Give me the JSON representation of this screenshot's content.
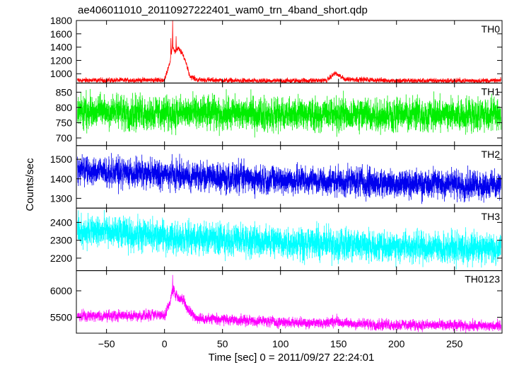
{
  "chart_data": {
    "type": "line",
    "title": "ae406011010_20110927222401_wam0_trn_4band_short.qdp",
    "xlabel": "Time [sec] 0 = 2011/09/27 22:24:01",
    "ylabel": "Counts/sec",
    "xlim": [
      -76,
      291
    ],
    "x_ticks": [
      -50,
      0,
      50,
      100,
      150,
      200,
      250
    ],
    "x_tick_labels": [
      "−50",
      "0",
      "50",
      "100",
      "150",
      "200",
      "250"
    ],
    "x_step": 0.25,
    "panels": [
      {
        "name": "TH0",
        "color": "#ff0000",
        "ylim": [
          860,
          1800
        ],
        "y_ticks": [
          1000,
          1200,
          1400,
          1600,
          1800
        ],
        "baseline": 900,
        "noise": 20,
        "profile": [
          [
            -75,
            900
          ],
          [
            0,
            905
          ],
          [
            5,
            1200
          ],
          [
            7,
            1420
          ],
          [
            9,
            1330
          ],
          [
            12,
            1380
          ],
          [
            15,
            1310
          ],
          [
            18,
            1200
          ],
          [
            22,
            960
          ],
          [
            28,
            910
          ],
          [
            50,
            900
          ],
          [
            80,
            890
          ],
          [
            140,
            900
          ],
          [
            147,
            1010
          ],
          [
            155,
            920
          ],
          [
            200,
            895
          ],
          [
            290,
            895
          ]
        ],
        "spikes": [
          [
            7,
            1790
          ],
          [
            5.5,
            1520
          ],
          [
            10,
            1550
          ]
        ]
      },
      {
        "name": "TH1",
        "color": "#00ee00",
        "ylim": [
          675,
          880
        ],
        "y_ticks": [
          700,
          750,
          800,
          850
        ],
        "baseline": 780,
        "noise": 30,
        "profile": [
          [
            -75,
            790
          ],
          [
            0,
            782
          ],
          [
            100,
            778
          ],
          [
            200,
            776
          ],
          [
            290,
            778
          ]
        ],
        "spikes": []
      },
      {
        "name": "TH2",
        "color": "#0000ee",
        "ylim": [
          1250,
          1570
        ],
        "y_ticks": [
          1300,
          1400,
          1500
        ],
        "baseline": 1400,
        "noise": 40,
        "profile": [
          [
            -75,
            1445
          ],
          [
            0,
            1420
          ],
          [
            100,
            1395
          ],
          [
            200,
            1378
          ],
          [
            290,
            1370
          ]
        ],
        "spikes": []
      },
      {
        "name": "TH3",
        "color": "#00ffff",
        "ylim": [
          2130,
          2480
        ],
        "y_ticks": [
          2200,
          2300,
          2400
        ],
        "baseline": 2300,
        "noise": 48,
        "profile": [
          [
            -75,
            2355
          ],
          [
            0,
            2320
          ],
          [
            100,
            2290
          ],
          [
            200,
            2265
          ],
          [
            290,
            2250
          ]
        ],
        "spikes": []
      },
      {
        "name": "TH0123",
        "color": "#ff00ff",
        "ylim": [
          5200,
          6380
        ],
        "y_ticks": [
          5500,
          6000
        ],
        "baseline": 5450,
        "noise": 55,
        "profile": [
          [
            -75,
            5520
          ],
          [
            0,
            5540
          ],
          [
            5,
            5800
          ],
          [
            7,
            6050
          ],
          [
            10,
            5920
          ],
          [
            15,
            5850
          ],
          [
            20,
            5650
          ],
          [
            28,
            5480
          ],
          [
            100,
            5410
          ],
          [
            140,
            5390
          ],
          [
            148,
            5440
          ],
          [
            155,
            5380
          ],
          [
            200,
            5360
          ],
          [
            290,
            5330
          ]
        ],
        "spikes": [
          [
            7,
            6260
          ]
        ]
      }
    ],
    "grid": false,
    "legend": "none"
  }
}
